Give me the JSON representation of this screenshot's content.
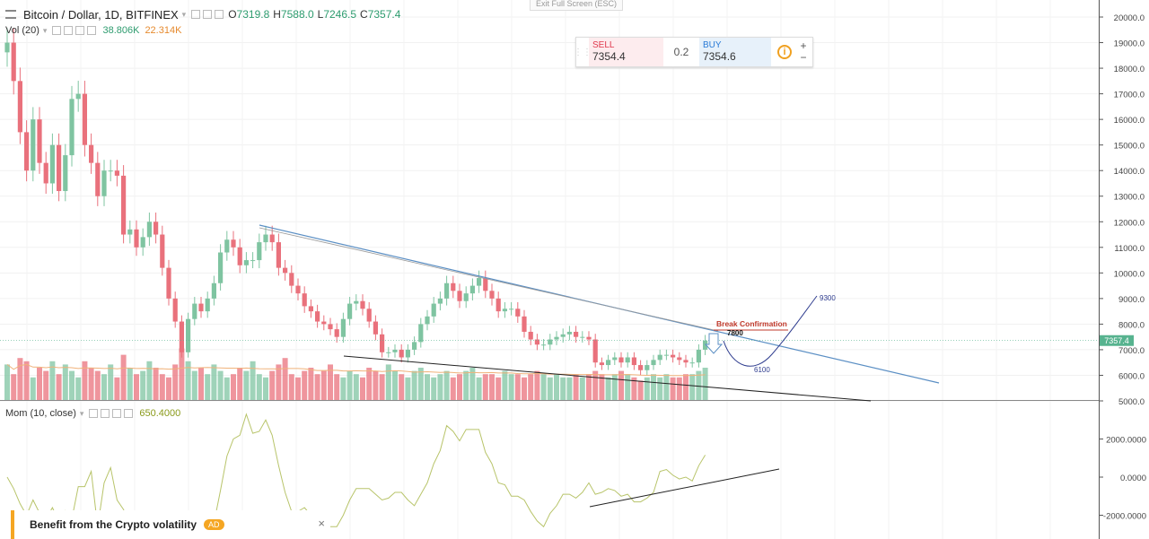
{
  "header": {
    "title": "Bitcoin / Dollar, 1D, BITFINEX",
    "ohlc": [
      {
        "label": "O",
        "value": "7319.8"
      },
      {
        "label": "H",
        "value": "7588.0"
      },
      {
        "label": "L",
        "value": "7246.5"
      },
      {
        "label": "C",
        "value": "7357.4"
      }
    ]
  },
  "volume": {
    "label": "Vol (20)",
    "value1": "38.806K",
    "value2": "22.314K"
  },
  "momentum": {
    "label": "Mom (10, close)",
    "value": "650.4000"
  },
  "exit_fullscreen": "Exit Full Screen (ESC)",
  "trade_panel": {
    "sell_label": "SELL",
    "sell_price": "7354.4",
    "spread": "0.2",
    "buy_label": "BUY",
    "buy_price": "7354.6",
    "plus": "+",
    "minus": "−"
  },
  "ad": {
    "text": "Benefit from the Crypto volatility",
    "badge": "AD",
    "close": "×"
  },
  "colors": {
    "up": "#7fc4a1",
    "down": "#e9717c",
    "trendline": "#5b8fc4",
    "mom_line": "#b8c46a",
    "annotation": "#2f3d8f",
    "break_label": "#c0392b",
    "price_tag": "#57b38f"
  },
  "chart_data": [
    {
      "type": "candlestick",
      "title": "Bitcoin / Dollar, 1D, BITFINEX",
      "ylim": [
        5000,
        20500
      ],
      "y_ticks": [
        "20000.0",
        "19000.0",
        "18000.0",
        "17000.0",
        "16000.0",
        "15000.0",
        "14000.0",
        "13000.0",
        "12000.0",
        "11000.0",
        "10000.0",
        "9000.0",
        "8000.0",
        "7000.0",
        "6000.0",
        "5000.0"
      ],
      "last_price": "7357.4",
      "closes": [
        19000,
        17500,
        15500,
        14000,
        16000,
        14300,
        13500,
        15000,
        13200,
        14600,
        16800,
        17000,
        15000,
        14300,
        13000,
        14000,
        14000,
        13800,
        11500,
        11700,
        11000,
        11400,
        12000,
        11500,
        10200,
        9000,
        8100,
        6900,
        8200,
        8800,
        8500,
        9000,
        9600,
        10800,
        11300,
        11000,
        10300,
        10500,
        10500,
        11200,
        11500,
        11200,
        10200,
        10000,
        9500,
        9200,
        8700,
        8500,
        8100,
        8000,
        7800,
        7500,
        8200,
        8800,
        8900,
        8600,
        8100,
        7600,
        6900,
        6900,
        7000,
        6700,
        7000,
        7300,
        8000,
        8300,
        8800,
        9000,
        9600,
        9300,
        8900,
        9200,
        9500,
        9800,
        9300,
        9000,
        8500,
        8600,
        8600,
        8300,
        7700,
        7400,
        7200,
        7200,
        7400,
        7500,
        7600,
        7700,
        7500,
        7500,
        7400,
        6500,
        6400,
        6600,
        6700,
        6500,
        6700,
        6400,
        6200,
        6400,
        6600,
        6800,
        6800,
        6700,
        6600,
        6500,
        6500,
        7000,
        7357
      ],
      "volumes": [
        11,
        8,
        13,
        12,
        7,
        10,
        9,
        12,
        8,
        11,
        9,
        7,
        12,
        10,
        9,
        8,
        11,
        7,
        14,
        10,
        8,
        9,
        12,
        10,
        8,
        7,
        11,
        16,
        12,
        9,
        10,
        8,
        11,
        9,
        7,
        8,
        10,
        9,
        12,
        8,
        7,
        9,
        11,
        13,
        8,
        7,
        9,
        10,
        8,
        9,
        11,
        8,
        7,
        9,
        8,
        7,
        10,
        9,
        8,
        11,
        9,
        8,
        7,
        9,
        10,
        8,
        7,
        8,
        9,
        7,
        8,
        9,
        10,
        7,
        8,
        8,
        7,
        9,
        8,
        8,
        7,
        8,
        9,
        8,
        7,
        8,
        7,
        7,
        8,
        7,
        8,
        9,
        8,
        7,
        8,
        9,
        8,
        7,
        6,
        7,
        8,
        7,
        8,
        7,
        7,
        8,
        8,
        9,
        10
      ],
      "annotations": {
        "break_confirmation": "Break Confirmation",
        "levels": [
          "7800",
          "6100",
          "9300"
        ]
      }
    },
    {
      "type": "line",
      "title": "Mom (10, close)",
      "ylim": [
        -2500,
        3000
      ],
      "y_ticks": [
        "2000.0000",
        "0.0000",
        "-2000.0000"
      ]
    }
  ]
}
